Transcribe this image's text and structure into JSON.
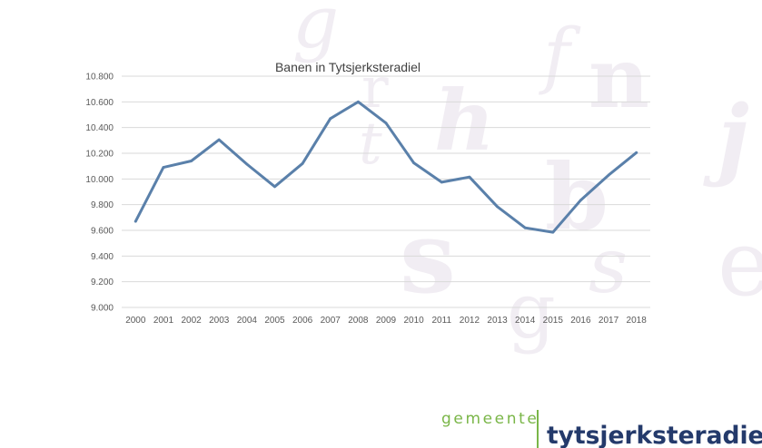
{
  "chart_data": {
    "type": "line",
    "title": "Banen in Tytsjerksteradiel",
    "xlabel": "",
    "ylabel": "",
    "x": [
      "2000",
      "2001",
      "2002",
      "2003",
      "2004",
      "2005",
      "2006",
      "2007",
      "2008",
      "2009",
      "2010",
      "2011",
      "2012",
      "2013",
      "2014",
      "2015",
      "2016",
      "2017",
      "2018"
    ],
    "series": [
      {
        "values": [
          9670,
          10090,
          10140,
          10305,
          10115,
          9940,
          10120,
          10470,
          10600,
          10435,
          10125,
          9975,
          10015,
          9785,
          9620,
          9585,
          9835,
          10030,
          10205
        ]
      }
    ],
    "ylim": [
      9000,
      10800
    ],
    "yticks": [
      9000,
      9200,
      9400,
      9600,
      9800,
      10000,
      10200,
      10400,
      10600,
      10800
    ],
    "ytick_labels": [
      "9.000",
      "9.200",
      "9.400",
      "9.600",
      "9.800",
      "10.000",
      "10.200",
      "10.400",
      "10.600",
      "10.800"
    ],
    "grid": true,
    "legend": "none",
    "line_color": "#5a80aa"
  },
  "background_letters": [
    "g",
    "f",
    "r",
    "n",
    "h",
    "t",
    "j",
    "b",
    "s",
    "s",
    "e",
    "g"
  ],
  "logo": {
    "prefix": "gemeente",
    "name": "tytsjerksteradiel",
    "prefix_color": "#7ab648",
    "name_color": "#243a6b"
  }
}
